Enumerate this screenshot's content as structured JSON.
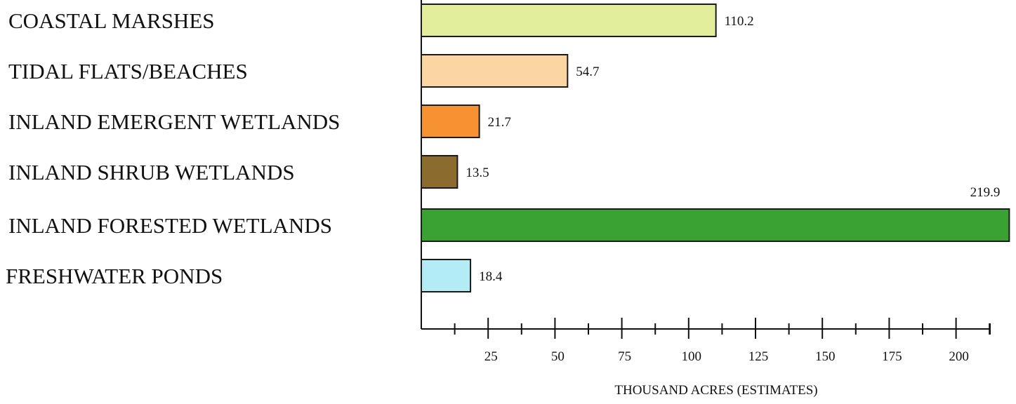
{
  "chart_data": {
    "type": "bar",
    "orientation": "horizontal",
    "categories": [
      "COASTAL MARSHES",
      "TIDAL FLATS/BEACHES",
      "INLAND EMERGENT WETLANDS",
      "INLAND SHRUB WETLANDS",
      "INLAND FORESTED WETLANDS",
      "FRESHWATER PONDS"
    ],
    "values": [
      110.2,
      54.7,
      21.7,
      13.5,
      219.9,
      18.4
    ],
    "value_labels": [
      "110.2",
      "54.7",
      "21.7",
      "13.5",
      "219.9",
      "18.4"
    ],
    "colors": [
      "#e3ee9d",
      "#fbd6a2",
      "#f79233",
      "#8c6b2e",
      "#3aa233",
      "#b4ecf6"
    ],
    "xlabel": "THOUSAND ACRES (ESTIMATES)",
    "ylabel": "",
    "title": "",
    "xlim": [
      0,
      220
    ],
    "xticks": [
      25,
      50,
      75,
      100,
      125,
      150,
      175,
      200
    ],
    "xtick_labels": [
      "25",
      "50",
      "75",
      "100",
      "125",
      "150",
      "175",
      "200"
    ],
    "minor_tick_step": 12.5,
    "grid": false,
    "legend": "none"
  }
}
